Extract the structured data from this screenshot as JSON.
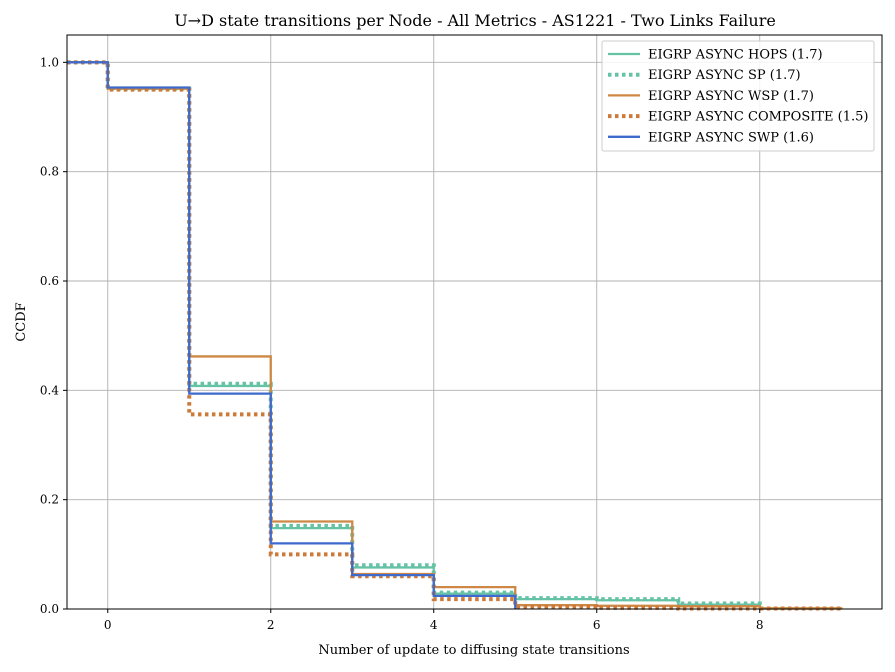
{
  "chart_data": {
    "type": "line",
    "step": "post",
    "title": "U→D state transitions per Node - All Metrics - AS1221 - Two Links Failure",
    "xlabel": "Number of update to diffusing state transitions",
    "ylabel": "CCDF",
    "xlim": [
      -0.5,
      9.5
    ],
    "ylim": [
      0.0,
      1.05
    ],
    "xticks": [
      0,
      2,
      4,
      6,
      8
    ],
    "yticks": [
      0.0,
      0.2,
      0.4,
      0.6,
      0.8,
      1.0
    ],
    "xtick_labels": [
      "0",
      "2",
      "4",
      "6",
      "8"
    ],
    "ytick_labels": [
      "0.0",
      "0.2",
      "0.4",
      "0.6",
      "0.8",
      "1.0"
    ],
    "grid": true,
    "legend_position": "top-right",
    "series": [
      {
        "name": "EIGRP ASYNC HOPS (1.7)",
        "color": "#66c2a5",
        "style": "solid",
        "x": [
          -0.5,
          0,
          1,
          2,
          3,
          4,
          5,
          6,
          7,
          8,
          9
        ],
        "y": [
          1.0,
          0.952,
          0.408,
          0.148,
          0.076,
          0.028,
          0.018,
          0.016,
          0.008,
          0.001,
          0.0
        ]
      },
      {
        "name": "EIGRP ASYNC SP (1.7)",
        "color": "#66c2a5",
        "style": "dotted",
        "x": [
          -0.5,
          0,
          1,
          2,
          3,
          4,
          5,
          6,
          7,
          8,
          9
        ],
        "y": [
          1.0,
          0.952,
          0.412,
          0.152,
          0.08,
          0.03,
          0.02,
          0.018,
          0.01,
          0.001,
          0.0
        ]
      },
      {
        "name": "EIGRP ASYNC WSP (1.7)",
        "color": "#cc8844",
        "style": "solid",
        "x": [
          -0.5,
          0,
          1,
          2,
          3,
          4,
          5,
          6,
          7,
          8,
          9
        ],
        "y": [
          1.0,
          0.952,
          0.462,
          0.16,
          0.064,
          0.04,
          0.007,
          0.006,
          0.005,
          0.001,
          0.0
        ]
      },
      {
        "name": "EIGRP ASYNC COMPOSITE (1.5)",
        "color": "#cc7a3a",
        "style": "dotted",
        "x": [
          -0.5,
          0,
          1,
          2,
          3,
          4,
          5,
          6,
          7,
          8,
          9
        ],
        "y": [
          1.0,
          0.95,
          0.356,
          0.1,
          0.06,
          0.018,
          0.004,
          0.002,
          0.001,
          0.001,
          0.0
        ]
      },
      {
        "name": "EIGRP ASYNC SWP (1.6)",
        "color": "#3d6acc",
        "style": "solid",
        "x": [
          -0.5,
          0,
          1,
          2,
          3,
          4,
          5
        ],
        "y": [
          1.0,
          0.954,
          0.394,
          0.12,
          0.062,
          0.024,
          0.0
        ]
      }
    ]
  }
}
